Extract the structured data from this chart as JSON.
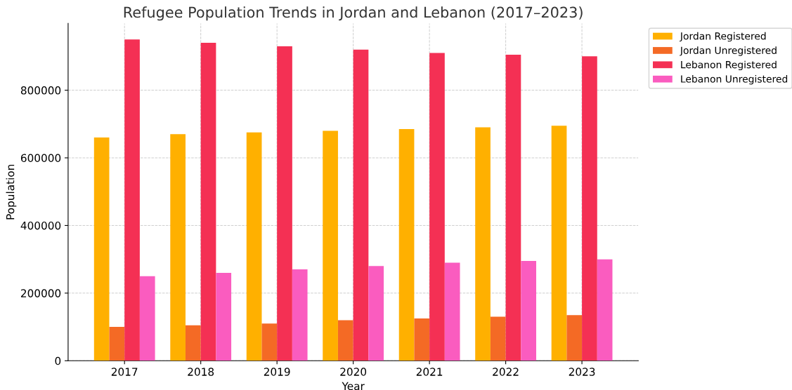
{
  "chart_data": {
    "type": "bar",
    "title": "Refugee Population Trends in Jordan and Lebanon (2017–2023)",
    "xlabel": "Year",
    "ylabel": "Population",
    "categories": [
      "2017",
      "2018",
      "2019",
      "2020",
      "2021",
      "2022",
      "2023"
    ],
    "series": [
      {
        "name": "Jordan Registered",
        "color": "#ffb000",
        "values": [
          660000,
          670000,
          675000,
          680000,
          685000,
          690000,
          695000
        ]
      },
      {
        "name": "Jordan Unregistered",
        "color": "#f46a25",
        "values": [
          100000,
          105000,
          110000,
          120000,
          125000,
          130000,
          135000
        ]
      },
      {
        "name": "Lebanon Registered",
        "color": "#f43054",
        "values": [
          950000,
          940000,
          930000,
          920000,
          910000,
          905000,
          900000
        ]
      },
      {
        "name": "Lebanon Unregistered",
        "color": "#fa5cbf",
        "values": [
          250000,
          260000,
          270000,
          280000,
          290000,
          295000,
          300000
        ]
      }
    ],
    "ylim": [
      0,
      997500
    ],
    "yticks": [
      0,
      200000,
      400000,
      600000,
      800000
    ],
    "grid": true,
    "legend": "top right"
  }
}
